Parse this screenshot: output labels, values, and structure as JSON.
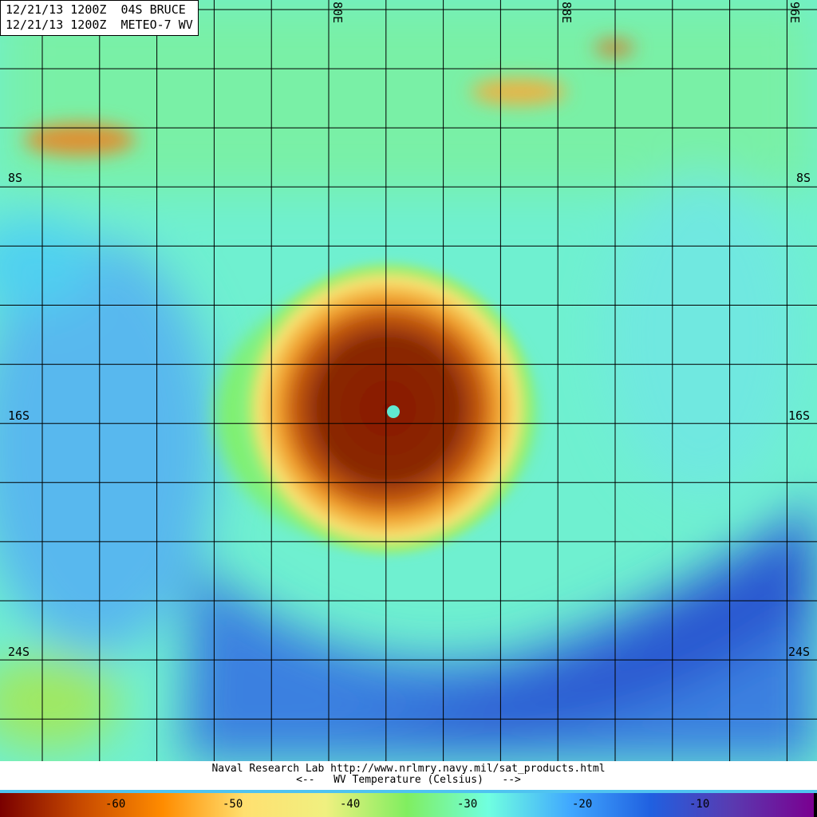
{
  "header": {
    "line1": "12/21/13 1200Z  04S BRUCE",
    "line2": "12/21/13 1200Z  METEO-7 WV"
  },
  "map": {
    "lon_labels": [
      "80E",
      "88E",
      "96E"
    ],
    "lat_labels": [
      "8S",
      "16S",
      "24S"
    ],
    "storm_name": "04S BRUCE",
    "grid_color": "#000000"
  },
  "footer": {
    "credit": "Naval Research Lab http://www.nrlmry.navy.mil/sat_products.html",
    "legend_title": "<--   WV Temperature (Celsius)   -->"
  },
  "colorbar": {
    "ticks": [
      "-60",
      "-50",
      "-40",
      "-30",
      "-20",
      "-10"
    ],
    "colors": [
      "#7a0000",
      "#c84a00",
      "#ff8c00",
      "#ffe070",
      "#f0f080",
      "#80ee60",
      "#70ffe0",
      "#40a8ff",
      "#2060e0",
      "#5a3ab0",
      "#7a0090"
    ]
  }
}
